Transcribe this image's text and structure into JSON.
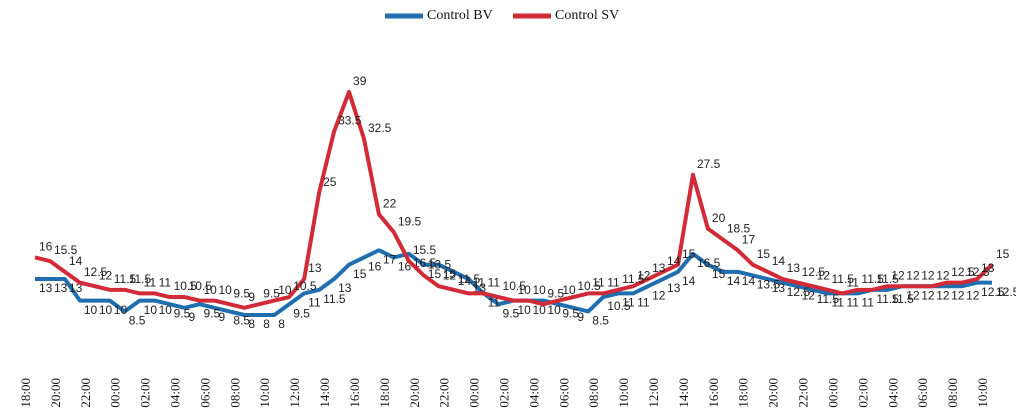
{
  "chart_data": {
    "type": "line",
    "categories": [
      "18:00",
      null,
      "20:00",
      null,
      "22:00",
      null,
      "00:00",
      null,
      "02:00",
      null,
      "04:00",
      null,
      "06:00",
      null,
      "08:00",
      null,
      "10:00",
      null,
      "12:00",
      null,
      "14:00",
      null,
      "16:00",
      null,
      "18:00",
      null,
      "20:00",
      null,
      "22:00",
      null,
      "00:00",
      null,
      "02:00",
      null,
      "04:00",
      null,
      "06:00",
      null,
      "08:00",
      null,
      "10:00",
      null,
      "12:00",
      null,
      "14:00",
      null,
      "16:00",
      null,
      "18:00",
      null,
      "20:00",
      null,
      "22:00",
      null,
      "00:00",
      null,
      "02:00",
      null,
      "04:00",
      null,
      "06:00",
      null,
      "08:00",
      null,
      "10:00"
    ],
    "series": [
      {
        "name": "Control BV",
        "color": "#1f6eb0",
        "values": [
          13,
          13,
          13,
          10,
          10,
          10,
          8.5,
          10,
          10,
          9.5,
          9,
          9.5,
          9,
          8.5,
          8,
          8,
          8,
          9.5,
          11,
          11.5,
          13,
          15,
          16,
          17,
          16,
          16.5,
          15,
          15,
          14,
          13,
          11,
          9.5,
          10,
          10,
          10,
          9.5,
          9,
          8.5,
          10.5,
          11,
          11,
          12,
          13,
          14,
          16.5,
          15,
          14,
          14,
          13.5,
          13,
          12.5,
          12,
          11.5,
          11,
          11,
          11,
          11.5,
          11.5,
          12,
          12,
          12,
          12,
          12,
          12.5,
          12.5
        ]
      },
      {
        "name": "Control SV",
        "color": "#d12b38",
        "values": [
          16,
          15.5,
          14,
          12.5,
          12,
          11.5,
          11.5,
          11,
          11,
          10.5,
          10.5,
          10,
          10,
          9.5,
          9,
          9.5,
          10,
          10.5,
          13,
          25,
          33.5,
          39,
          32.5,
          22,
          19.5,
          15.5,
          13.5,
          12,
          11.5,
          11,
          11,
          10.5,
          10,
          10,
          9.5,
          10,
          10.5,
          11,
          11,
          11.5,
          12,
          13,
          14,
          15,
          27.5,
          20,
          18.5,
          17,
          15,
          14,
          13,
          12.5,
          12,
          11.5,
          11,
          11.5,
          11.5,
          12,
          12,
          12,
          12,
          12.5,
          12.5,
          13,
          15
        ]
      }
    ],
    "legend": "top"
  }
}
